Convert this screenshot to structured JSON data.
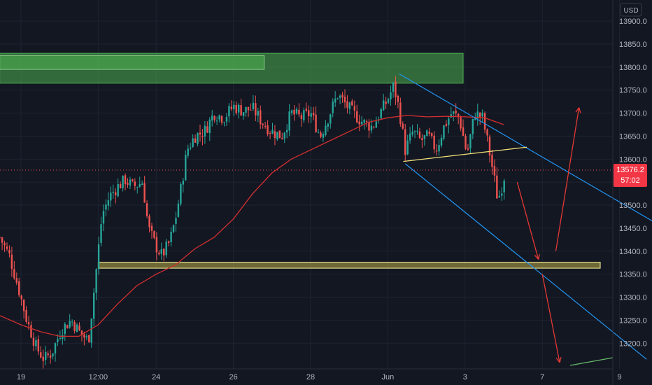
{
  "chart_data": {
    "type": "candlestick",
    "currency": "USD",
    "y_ticks": [
      13900.0,
      13850.0,
      13800.0,
      13750.0,
      13700.0,
      13650.0,
      13600.0,
      13550.0,
      13500.0,
      13450.0,
      13400.0,
      13350.0,
      13300.0,
      13250.0,
      13200.0
    ],
    "y_tick_labels": [
      "13900.0",
      "13850.0",
      "13800.0",
      "13750.0",
      "13700.0",
      "13650.0",
      "13600.0",
      "13550.0",
      "13500.0",
      "13450.0",
      "13400.0",
      "13350.0",
      "13300.0",
      "13250.0",
      "13200.0"
    ],
    "x_ticks": [
      {
        "label": "19",
        "t": 0
      },
      {
        "label": "12:00",
        "t": 4
      },
      {
        "label": "24",
        "t": 7
      },
      {
        "label": "26",
        "t": 11
      },
      {
        "label": "28",
        "t": 15
      },
      {
        "label": "Jun",
        "t": 19
      },
      {
        "label": "3",
        "t": 23
      },
      {
        "label": "7",
        "t": 27
      },
      {
        "label": "9",
        "t": 31
      }
    ],
    "ylim": [
      13155,
      13960
    ],
    "xlim": [
      -1.1,
      32.8
    ],
    "grid": true,
    "last_price": "13576.2",
    "last_price_value": 13576.2,
    "countdown": "57:02",
    "colors": {
      "background": "#131722",
      "grid": "#1f2330",
      "bull": "#26a69a",
      "bear": "#ef5350",
      "ma": "#d32f2f",
      "channel": "#2196f3",
      "zone_supply": "#4caf50",
      "zone_demand": "#c9b84a",
      "neckline": "#f5e27a",
      "arrow": "#e53935",
      "price_line": "#ef5350",
      "text": "#b2b5be"
    },
    "price_path": [
      [
        -1.1,
        13430
      ],
      [
        -0.6,
        13390
      ],
      [
        -0.2,
        13330
      ],
      [
        0.3,
        13250
      ],
      [
        0.8,
        13190
      ],
      [
        1.2,
        13165
      ],
      [
        1.6,
        13180
      ],
      [
        2.1,
        13230
      ],
      [
        2.6,
        13250
      ],
      [
        3.1,
        13220
      ],
      [
        3.5,
        13205
      ],
      [
        3.9,
        13360
      ],
      [
        4.2,
        13480
      ],
      [
        4.6,
        13520
      ],
      [
        5.0,
        13540
      ],
      [
        5.4,
        13555
      ],
      [
        5.8,
        13540
      ],
      [
        6.3,
        13550
      ],
      [
        6.6,
        13450
      ],
      [
        7.0,
        13410
      ],
      [
        7.3,
        13390
      ],
      [
        7.7,
        13420
      ],
      [
        8.0,
        13470
      ],
      [
        8.3,
        13540
      ],
      [
        8.6,
        13620
      ],
      [
        9.0,
        13650
      ],
      [
        9.5,
        13660
      ],
      [
        10.0,
        13700
      ],
      [
        10.5,
        13690
      ],
      [
        11.0,
        13715
      ],
      [
        11.5,
        13705
      ],
      [
        12.0,
        13710
      ],
      [
        12.5,
        13680
      ],
      [
        13.0,
        13660
      ],
      [
        13.5,
        13650
      ],
      [
        14.0,
        13700
      ],
      [
        14.5,
        13690
      ],
      [
        15.0,
        13700
      ],
      [
        15.5,
        13650
      ],
      [
        16.0,
        13700
      ],
      [
        16.4,
        13740
      ],
      [
        16.8,
        13720
      ],
      [
        17.2,
        13700
      ],
      [
        17.7,
        13680
      ],
      [
        18.2,
        13670
      ],
      [
        18.6,
        13700
      ],
      [
        19.0,
        13730
      ],
      [
        19.3,
        13760
      ],
      [
        19.6,
        13705
      ],
      [
        19.9,
        13620
      ],
      [
        20.3,
        13660
      ],
      [
        20.7,
        13640
      ],
      [
        21.1,
        13650
      ],
      [
        21.5,
        13620
      ],
      [
        21.9,
        13670
      ],
      [
        22.3,
        13700
      ],
      [
        22.7,
        13690
      ],
      [
        23.1,
        13610
      ],
      [
        23.5,
        13700
      ],
      [
        23.9,
        13690
      ],
      [
        24.2,
        13630
      ],
      [
        24.5,
        13560
      ],
      [
        24.7,
        13510
      ],
      [
        24.9,
        13540
      ],
      [
        25.1,
        13576
      ]
    ],
    "ma_path": [
      [
        -1.1,
        13260
      ],
      [
        0.0,
        13240
      ],
      [
        1.0,
        13225
      ],
      [
        2.0,
        13215
      ],
      [
        3.0,
        13215
      ],
      [
        4.0,
        13240
      ],
      [
        5.0,
        13285
      ],
      [
        6.0,
        13325
      ],
      [
        7.0,
        13350
      ],
      [
        8.0,
        13370
      ],
      [
        9.0,
        13405
      ],
      [
        10.0,
        13430
      ],
      [
        11.0,
        13470
      ],
      [
        12.0,
        13525
      ],
      [
        13.0,
        13570
      ],
      [
        14.0,
        13600
      ],
      [
        15.0,
        13620
      ],
      [
        16.0,
        13640
      ],
      [
        17.0,
        13660
      ],
      [
        18.0,
        13680
      ],
      [
        19.0,
        13690
      ],
      [
        20.0,
        13695
      ],
      [
        21.0,
        13692
      ],
      [
        22.0,
        13693
      ],
      [
        23.0,
        13692
      ],
      [
        24.0,
        13690
      ],
      [
        25.0,
        13675
      ]
    ],
    "zones": [
      {
        "name": "supply-zone",
        "t0": -1.1,
        "t1": 22.9,
        "p0": 13765,
        "p1": 13830
      },
      {
        "name": "supply-zone-inner",
        "t0": -1.1,
        "t1": 12.6,
        "p0": 13795,
        "p1": 13825
      },
      {
        "name": "demand-zone",
        "t0": 4.0,
        "t1": 30.0,
        "p0": 13363,
        "p1": 13376
      }
    ],
    "channel_lines": [
      {
        "name": "channel-upper",
        "from": [
          19.6,
          13785
        ],
        "to": [
          32.8,
          13463
        ]
      },
      {
        "name": "channel-lower",
        "from": [
          19.9,
          13590
        ],
        "to": [
          32.4,
          13165
        ]
      }
    ],
    "neckline": {
      "from": [
        19.8,
        13595
      ],
      "to": [
        26.2,
        13626
      ]
    },
    "arrows": [
      {
        "name": "arrow-1",
        "from": [
          25.7,
          13550
        ],
        "to": [
          26.8,
          13382
        ]
      },
      {
        "name": "arrow-2",
        "from": [
          27.7,
          13400
        ],
        "to": [
          28.9,
          13712
        ]
      },
      {
        "name": "arrow-3",
        "from": [
          27.0,
          13350
        ],
        "to": [
          27.9,
          13158
        ]
      }
    ]
  }
}
